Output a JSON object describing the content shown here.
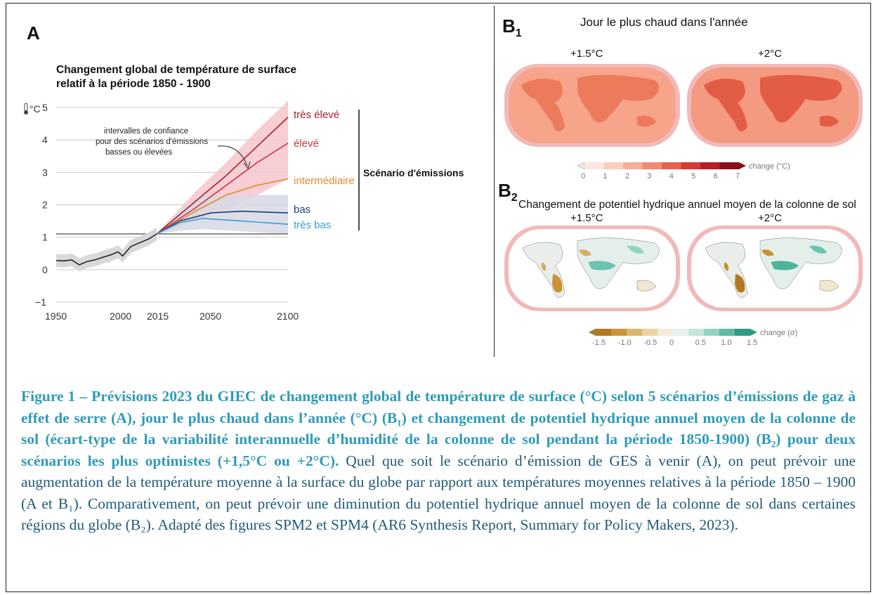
{
  "panel_a": {
    "letter": "A",
    "title_line1": "Changement global de température de surface",
    "title_line2": "relatif à la période 1850 - 1900",
    "y_unit": "°C",
    "annotation": [
      "intervalles de confiance",
      "pour des scénarios d'émissions",
      "basses ou élevées"
    ],
    "scenario_heading": "Scénario d'émissions"
  },
  "chart_data": {
    "type": "line",
    "title": "Changement global de température de surface relatif à la période 1850 - 1900",
    "ylabel": "°C",
    "xlim": [
      1950,
      2100
    ],
    "ylim": [
      -1,
      5
    ],
    "x_ticks": [
      1950,
      2000,
      2015,
      2050,
      2100
    ],
    "y_ticks": [
      -1,
      0,
      1,
      2,
      3,
      4,
      5
    ],
    "reference_line_y": 1.1,
    "historical": {
      "x": [
        1950,
        1955,
        1960,
        1965,
        1970,
        1975,
        1980,
        1985,
        1990,
        1993,
        1998,
        2000,
        2005,
        2010,
        2015
      ],
      "y": [
        0.28,
        0.27,
        0.3,
        0.15,
        0.25,
        0.3,
        0.38,
        0.45,
        0.55,
        0.42,
        0.7,
        0.75,
        0.85,
        0.95,
        1.1
      ]
    },
    "series": [
      {
        "name": "très élevé",
        "color": "#a3202a",
        "x": [
          2015,
          2040,
          2060,
          2080,
          2100
        ],
        "y": [
          1.1,
          2.1,
          2.9,
          3.8,
          4.7
        ]
      },
      {
        "name": "élevé",
        "color": "#d3313d",
        "x": [
          2015,
          2040,
          2060,
          2080,
          2100
        ],
        "y": [
          1.1,
          1.9,
          2.6,
          3.3,
          3.9
        ]
      },
      {
        "name": "intermédiaire",
        "color": "#e5882e",
        "x": [
          2015,
          2040,
          2060,
          2080,
          2100
        ],
        "y": [
          1.1,
          1.8,
          2.3,
          2.6,
          2.8
        ]
      },
      {
        "name": "bas",
        "color": "#1f3f6e",
        "x": [
          2015,
          2030,
          2050,
          2070,
          2100
        ],
        "y": [
          1.1,
          1.5,
          1.75,
          1.8,
          1.75
        ]
      },
      {
        "name": "très bas",
        "color": "#3a9fcf",
        "x": [
          2015,
          2030,
          2045,
          2070,
          2100
        ],
        "y": [
          1.1,
          1.45,
          1.58,
          1.5,
          1.4
        ]
      }
    ],
    "bands": [
      {
        "label": "high",
        "color": "#f4c6cc",
        "x": [
          2015,
          2040,
          2060,
          2080,
          2100
        ],
        "low": [
          1.1,
          1.5,
          1.9,
          2.3,
          2.8
        ],
        "high": [
          1.1,
          2.4,
          3.3,
          4.3,
          5.2
        ]
      },
      {
        "label": "low",
        "color": "#d6d9e4",
        "x": [
          2015,
          2030,
          2045,
          2100
        ],
        "low": [
          1.1,
          1.2,
          1.25,
          1.1
        ],
        "high": [
          1.1,
          1.8,
          2.3,
          2.3
        ]
      }
    ]
  },
  "panel_b1": {
    "letter": "B",
    "sub": "1",
    "title": "Jour le plus chaud dans l'année",
    "map_labels": [
      "+1.5°C",
      "+2°C"
    ],
    "colorbar": {
      "ticks": [
        "0",
        "1",
        "2",
        "3",
        "4",
        "5",
        "6",
        "7"
      ],
      "unit": "change (°C)",
      "colors": [
        "#fde6df",
        "#fbcdbd",
        "#f7ad97",
        "#f28a70",
        "#e8624d",
        "#d63a30",
        "#b51d22",
        "#8a0d16"
      ]
    }
  },
  "panel_b2": {
    "letter": "B",
    "sub": "2",
    "title": "Changement de potentiel hydrique annuel moyen de la colonne de sol",
    "map_labels": [
      "+1.5°C",
      "+2°C"
    ],
    "colorbar": {
      "ticks": [
        "-1.5",
        "-1.0",
        "-0.5",
        "0",
        "0.5",
        "1.0",
        "1.5"
      ],
      "unit": "change (σ)",
      "colors": [
        "#b07a1e",
        "#c9963c",
        "#ddb56c",
        "#ecd4a2",
        "#f6ecd8",
        "#e6f1ee",
        "#c2e5dc",
        "#93d2c3",
        "#5dbaa6",
        "#2f9a86"
      ]
    }
  },
  "caption": {
    "bold": "Figure 1 – Prévisions 2023 du GIEC de changement global de température de surface (°C) selon 5 scénarios d’émissions de gaz à effet de serre (A), jour le plus chaud dans l’année (°C) (B₁) et changement de potentiel hydrique annuel moyen de la colonne de sol (écart-type de la variabilité interannuelle d’humidité de la colonne de sol pendant la période 1850-1900) (B₂) pour deux scénarios les plus optimistes (+1,5°C ou +2°C).",
    "normal": "Quel que soit le scénario d’émission de GES à venir (A), on peut prévoir une augmentation de la température moyenne à la surface du globe par rapport aux températures moyennes relatives à la période 1850 – 1900 (A et B₁). Comparativement, on peut prévoir une diminution du potentiel hydrique annuel moyen de la colonne de sol dans certaines régions du globe (B₂). Adapté des figures SPM2 et SPM4 (AR6 Synthesis Report, Summary for Policy Makers, 2023)."
  }
}
